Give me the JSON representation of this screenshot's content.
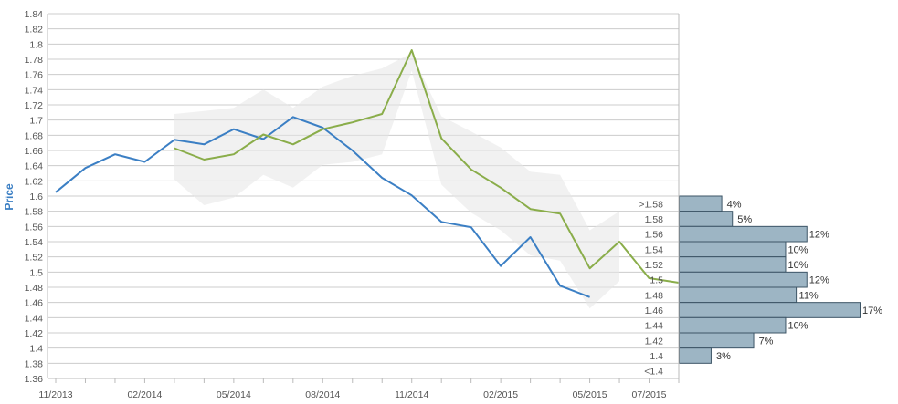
{
  "chart_data": {
    "type": "line",
    "ylabel": "Price",
    "ylim": [
      1.36,
      1.84
    ],
    "yticks": [
      "1.36",
      "1.38",
      "1.4",
      "1.42",
      "1.44",
      "1.46",
      "1.48",
      "1.5",
      "1.52",
      "1.54",
      "1.56",
      "1.58",
      "1.6",
      "1.62",
      "1.64",
      "1.66",
      "1.68",
      "1.7",
      "1.72",
      "1.74",
      "1.76",
      "1.78",
      "1.8",
      "1.82",
      "1.84"
    ],
    "xlim": [
      "2013-11",
      "2015-08"
    ],
    "xticks": [
      {
        "x": "2013-11",
        "label": "11/2013"
      },
      {
        "x": "2014-02",
        "label": "02/2014"
      },
      {
        "x": "2014-05",
        "label": "05/2014"
      },
      {
        "x": "2014-08",
        "label": "08/2014"
      },
      {
        "x": "2014-11",
        "label": "11/2014"
      },
      {
        "x": "2015-02",
        "label": "02/2015"
      },
      {
        "x": "2015-05",
        "label": "05/2015"
      },
      {
        "x": "2015-07",
        "label": "07/2015"
      }
    ],
    "x": [
      "2013-11",
      "2013-12",
      "2014-01",
      "2014-02",
      "2014-03",
      "2014-04",
      "2014-05",
      "2014-06",
      "2014-07",
      "2014-08",
      "2014-09",
      "2014-10",
      "2014-11",
      "2014-12",
      "2015-01",
      "2015-02",
      "2015-03",
      "2015-04",
      "2015-05",
      "2015-06",
      "2015-07",
      "2015-08"
    ],
    "series": [
      {
        "color": "#3b7fc4",
        "values": [
          1.605,
          1.637,
          1.655,
          1.645,
          1.674,
          1.668,
          1.688,
          1.675,
          1.704,
          1.69,
          1.66,
          1.624,
          1.601,
          1.566,
          1.559,
          1.508,
          1.546,
          1.482,
          1.467,
          null,
          null,
          null
        ]
      },
      {
        "color": "#8aad4a",
        "values": [
          null,
          null,
          null,
          null,
          1.663,
          1.648,
          1.655,
          1.681,
          1.668,
          1.688,
          1.697,
          1.708,
          1.792,
          1.676,
          1.635,
          1.611,
          1.583,
          1.577,
          1.505,
          1.54,
          1.492,
          1.486
        ]
      }
    ],
    "band": {
      "color": "#e6e6e6",
      "upper": [
        null,
        null,
        null,
        null,
        1.708,
        1.712,
        1.716,
        1.74,
        1.716,
        1.744,
        1.758,
        1.768,
        1.788,
        1.705,
        1.685,
        1.664,
        1.632,
        1.628,
        1.555,
        1.58,
        null,
        null
      ],
      "lower": [
        null,
        null,
        null,
        null,
        1.622,
        1.588,
        1.598,
        1.628,
        1.611,
        1.641,
        1.645,
        1.655,
        1.765,
        1.615,
        1.578,
        1.555,
        1.522,
        1.515,
        1.452,
        1.488,
        null,
        null
      ]
    },
    "distribution": {
      "type": "bar",
      "color": "#9db5c4",
      "edge_color": "#3d5566",
      "bins": [
        {
          "label": ">1.58",
          "y": 1.58,
          "percent": 4
        },
        {
          "label": "1.58",
          "y": 1.56,
          "percent": 5
        },
        {
          "label": "1.56",
          "y": 1.54,
          "percent": 12
        },
        {
          "label": "1.54",
          "y": 1.52,
          "percent": 10
        },
        {
          "label": "1.52",
          "y": 1.5,
          "percent": 10
        },
        {
          "label": "1.5",
          "y": 1.48,
          "percent": 12
        },
        {
          "label": "1.48",
          "y": 1.46,
          "percent": 11
        },
        {
          "label": "1.46",
          "y": 1.44,
          "percent": 17
        },
        {
          "label": "1.44",
          "y": 1.42,
          "percent": 10
        },
        {
          "label": "1.42",
          "y": 1.4,
          "percent": 7
        },
        {
          "label": "1.4",
          "y": 1.38,
          "percent": 3
        },
        {
          "label": "<1.4",
          "y": null,
          "percent": null
        }
      ]
    }
  }
}
